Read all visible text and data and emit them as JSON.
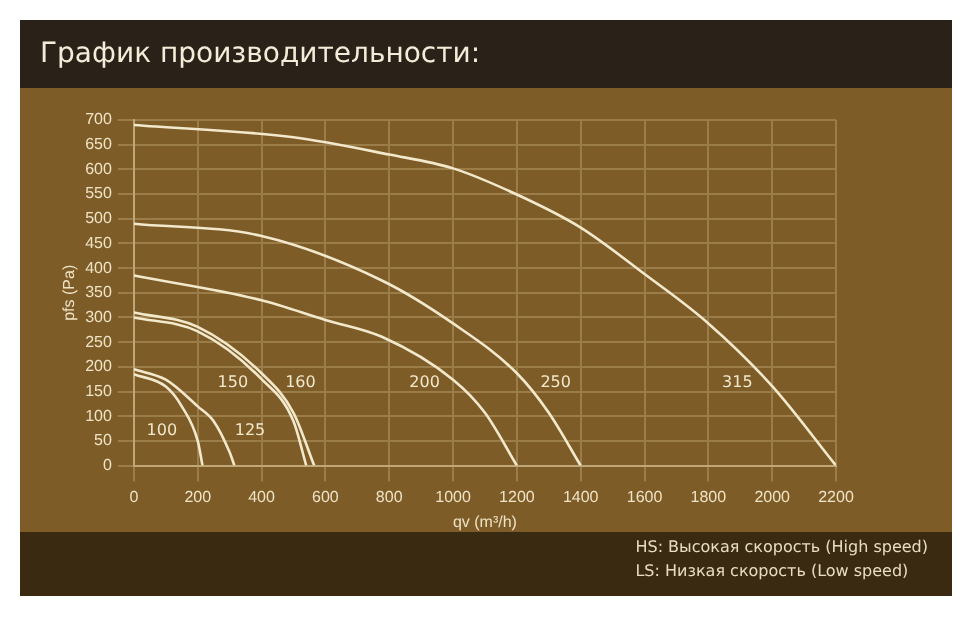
{
  "chart_data": {
    "type": "line",
    "title": "График производительности:",
    "xlabel": "qv (m³/h)",
    "ylabel": "pfs (Pa)",
    "xlim": [
      0,
      2200
    ],
    "xticks": [
      0,
      200,
      400,
      600,
      800,
      1000,
      1200,
      1400,
      1600,
      1800,
      2000,
      2200
    ],
    "ylim": [
      0,
      700
    ],
    "yticks": [
      0,
      50,
      100,
      150,
      200,
      250,
      300,
      350,
      400,
      450,
      500,
      550,
      600,
      650,
      700
    ],
    "grid": true,
    "legend": false,
    "marker": "none",
    "line_style": "solid",
    "series": [
      {
        "name": "100",
        "color": "#f2e8cc",
        "x": [
          0,
          100,
          150,
          200,
          215
        ],
        "values": [
          185,
          160,
          120,
          50,
          0
        ]
      },
      {
        "name": "125",
        "color": "#f2e8cc",
        "x": [
          0,
          100,
          200,
          250,
          300,
          315
        ],
        "values": [
          195,
          174,
          120,
          90,
          27,
          0
        ]
      },
      {
        "name": "150",
        "color": "#f2e8cc",
        "x": [
          0,
          200,
          400,
          500,
          540
        ],
        "values": [
          300,
          272,
          175,
          90,
          0
        ]
      },
      {
        "name": "160",
        "color": "#f2e8cc",
        "x": [
          0,
          200,
          400,
          500,
          565
        ],
        "values": [
          310,
          281,
          187,
          107,
          0
        ]
      },
      {
        "name": "200",
        "color": "#f2e8cc",
        "x": [
          0,
          400,
          600,
          777,
          1000,
          1100,
          1200
        ],
        "values": [
          385,
          335,
          295,
          261,
          174,
          107,
          0
        ]
      },
      {
        "name": "250",
        "color": "#f2e8cc",
        "x": [
          0,
          400,
          777,
          1000,
          1200,
          1300,
          1400
        ],
        "values": [
          490,
          465,
          375,
          288,
          187,
          107,
          0
        ]
      },
      {
        "name": "315",
        "color": "#f2e8cc",
        "x": [
          0,
          500,
          800,
          1000,
          1200,
          1400,
          1600,
          1800,
          2000,
          2200
        ],
        "values": [
          690,
          665,
          630,
          602,
          549,
          482,
          388,
          288,
          161,
          0
        ]
      }
    ],
    "annotations": [
      "HS: Высокая скорость (High speed)",
      "LS: Низкая скорость (Low speed)"
    ]
  }
}
